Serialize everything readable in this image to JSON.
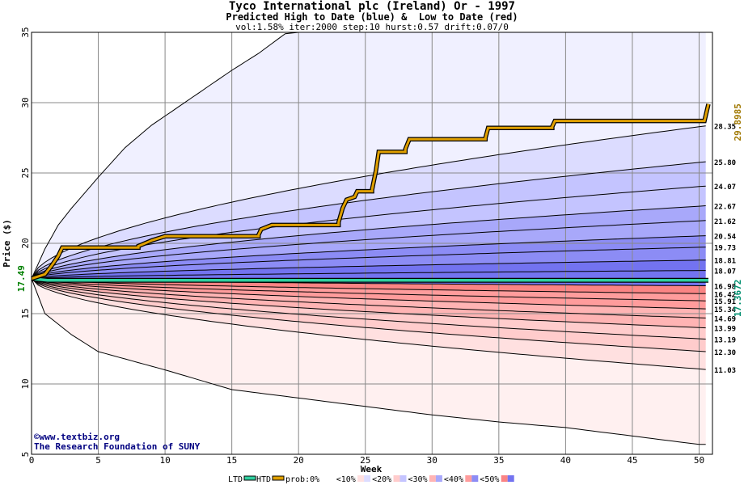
{
  "header": {
    "title": "Tyco International plc (Ireland) Or - 1997",
    "subtitle": "Predicted High to Date (blue) &  Low to Date (red)",
    "params": "vol:1.58% iter:2000 step:10 hurst:0.57 drift:0.07/0"
  },
  "chart_data": {
    "type": "area",
    "xlabel": "Week",
    "ylabel": "Price ($)",
    "xlim": [
      0,
      51
    ],
    "ylim": [
      5,
      35
    ],
    "x_ticks": [
      "0",
      "5",
      "10",
      "15",
      "20",
      "25",
      "30",
      "35",
      "40",
      "45",
      "50"
    ],
    "y_ticks": [
      "5",
      "10",
      "15",
      "20",
      "25",
      "30",
      "35"
    ],
    "grid": true,
    "start_price_label": "17.49",
    "start_price": 17.49,
    "htd_final_label": "29.8985",
    "ltd_final_label": "17.3672",
    "ltd_value": 17.3672,
    "percentile_end_labels": [
      "28.35",
      "25.80",
      "24.07",
      "22.67",
      "21.62",
      "20.54",
      "19.73",
      "18.81",
      "18.07",
      "16.98",
      "16.42",
      "15.91",
      "15.34",
      "14.69",
      "13.99",
      "13.19",
      "12.30",
      "11.03"
    ],
    "percentile_end_values": [
      28.35,
      25.8,
      24.07,
      22.67,
      21.62,
      20.54,
      19.73,
      18.81,
      18.07,
      16.98,
      16.42,
      15.91,
      15.34,
      14.69,
      13.99,
      13.19,
      12.3,
      11.03
    ],
    "envelope_upper": [
      [
        0,
        17.49
      ],
      [
        1,
        19.6
      ],
      [
        2,
        21.3
      ],
      [
        3,
        22.5
      ],
      [
        5,
        24.7
      ],
      [
        7,
        26.8
      ],
      [
        9,
        28.4
      ],
      [
        11,
        29.7
      ],
      [
        13,
        31.0
      ],
      [
        15,
        32.3
      ],
      [
        17,
        33.5
      ],
      [
        19,
        34.9
      ],
      [
        20,
        35
      ]
    ],
    "envelope_lower": [
      [
        0,
        17.49
      ],
      [
        1,
        15.0
      ],
      [
        3,
        13.5
      ],
      [
        5,
        12.3
      ],
      [
        10,
        11.0
      ],
      [
        15,
        9.6
      ],
      [
        20,
        9.0
      ],
      [
        25,
        8.4
      ],
      [
        30,
        7.8
      ],
      [
        35,
        7.3
      ],
      [
        40,
        6.9
      ],
      [
        45,
        6.3
      ],
      [
        50,
        5.7
      ]
    ],
    "htd_series": [
      [
        0,
        17.49
      ],
      [
        1,
        17.8
      ],
      [
        1.5,
        18.4
      ],
      [
        2,
        19.1
      ],
      [
        2.3,
        19.7
      ],
      [
        8,
        19.8
      ],
      [
        9,
        20.2
      ],
      [
        10,
        20.5
      ],
      [
        17,
        20.6
      ],
      [
        17.2,
        21.0
      ],
      [
        18,
        21.3
      ],
      [
        23,
        21.5
      ],
      [
        23.3,
        22.5
      ],
      [
        23.6,
        23.1
      ],
      [
        24.2,
        23.3
      ],
      [
        24.4,
        23.7
      ],
      [
        25.5,
        23.8
      ],
      [
        25.8,
        25.2
      ],
      [
        26,
        26.5
      ],
      [
        28,
        26.7
      ],
      [
        28.3,
        27.4
      ],
      [
        34,
        27.5
      ],
      [
        34.2,
        28.2
      ],
      [
        39,
        28.3
      ],
      [
        39.2,
        28.7
      ],
      [
        50.4,
        28.7
      ],
      [
        50.7,
        29.8985
      ]
    ],
    "legend_items": [
      "LTD",
      "HTD",
      "prob:0%",
      "<10%",
      "<20%",
      "<30%",
      "<40%",
      "<50%"
    ],
    "watermark_line1": "©www.textbiz.org",
    "watermark_line2": "The Research Foundation of SUNY",
    "colors": {
      "grid": "#888888",
      "htd_line": "#e0a000",
      "ltd_line": "#30d0a0",
      "start_label": "#008000",
      "htd_final_label": "#a07800",
      "ltd_final_label": "#009070",
      "watermark": "#000080",
      "bands_blue": [
        "#f0f0ff",
        "#dcdcff",
        "#c4c4ff",
        "#a8a8fa",
        "#8c8cf5",
        "#7373f0"
      ],
      "bands_red": [
        "#fff0f0",
        "#ffe0e0",
        "#ffcccc",
        "#ffb4b4",
        "#ff9c9c",
        "#fa8484"
      ]
    }
  }
}
